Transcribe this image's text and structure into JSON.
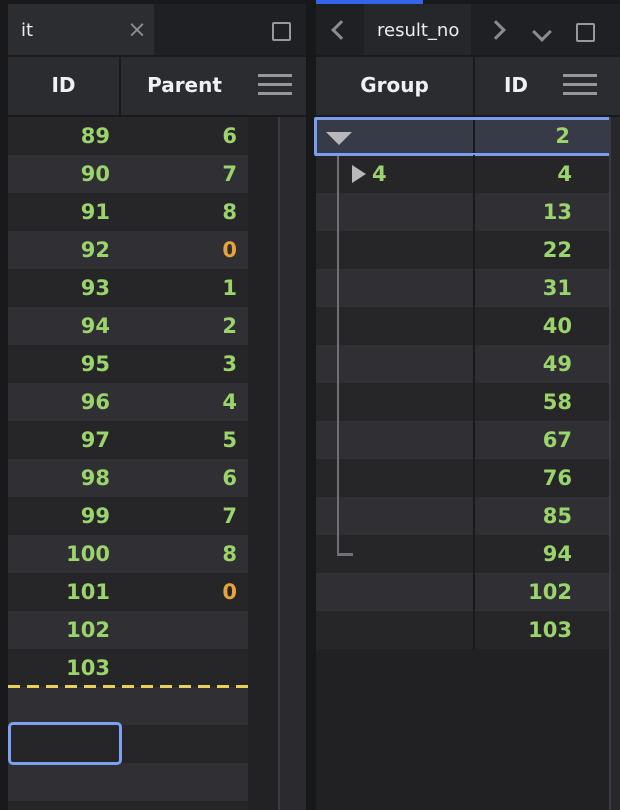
{
  "colors": {
    "value_green": "#9bd36d",
    "zero_orange": "#e7a43b",
    "selection_blue": "#7ca0f2",
    "active_tab_accent_blue": "#3465e8",
    "end_marker_yellow": "#e8d05e",
    "row_dark": "#262629",
    "row_light": "#303034",
    "selected_row_bg": "#363b47"
  },
  "left_panel": {
    "tab": {
      "label": "it",
      "close_glyph": "×",
      "close_icon": "close-x"
    },
    "window_icon": "maximize-square-outline",
    "header": {
      "columns": [
        "ID",
        "Parent"
      ],
      "menu_icon": "hamburger-menu"
    },
    "rows": [
      {
        "id": "89",
        "parent": "6"
      },
      {
        "id": "90",
        "parent": "7"
      },
      {
        "id": "91",
        "parent": "8"
      },
      {
        "id": "92",
        "parent": "0"
      },
      {
        "id": "93",
        "parent": "1"
      },
      {
        "id": "94",
        "parent": "2"
      },
      {
        "id": "95",
        "parent": "3"
      },
      {
        "id": "96",
        "parent": "4"
      },
      {
        "id": "97",
        "parent": "5"
      },
      {
        "id": "98",
        "parent": "6"
      },
      {
        "id": "99",
        "parent": "7"
      },
      {
        "id": "100",
        "parent": "8"
      },
      {
        "id": "101",
        "parent": "0"
      },
      {
        "id": "102",
        "parent": ""
      },
      {
        "id": "103",
        "parent": ""
      }
    ],
    "end_of_data_marker": "dashed-yellow-line",
    "trailing_empty_rows": 4,
    "selected_cell": {
      "location": "second-empty-row-after-marker",
      "column": "ID",
      "value": ""
    }
  },
  "right_panel": {
    "nav": {
      "back_icon": "chevron-left",
      "forward_icon": "chevron-right",
      "dropdown_icon": "chevron-down",
      "window_icon": "maximize-square-outline"
    },
    "tab": {
      "label": "result_no",
      "active": true
    },
    "header": {
      "columns": [
        "Group",
        "ID"
      ],
      "menu_icon": "hamburger-menu"
    },
    "rows": [
      {
        "group": "",
        "id": "2",
        "expander": "expanded",
        "selected": true
      },
      {
        "group": "4",
        "id": "4",
        "expander": "collapsed",
        "selected": false
      },
      {
        "group": "",
        "id": "13",
        "expander": "",
        "selected": false
      },
      {
        "group": "",
        "id": "22",
        "expander": "",
        "selected": false
      },
      {
        "group": "",
        "id": "31",
        "expander": "",
        "selected": false
      },
      {
        "group": "",
        "id": "40",
        "expander": "",
        "selected": false
      },
      {
        "group": "",
        "id": "49",
        "expander": "",
        "selected": false
      },
      {
        "group": "",
        "id": "58",
        "expander": "",
        "selected": false
      },
      {
        "group": "",
        "id": "67",
        "expander": "",
        "selected": false
      },
      {
        "group": "",
        "id": "76",
        "expander": "",
        "selected": false
      },
      {
        "group": "",
        "id": "85",
        "expander": "",
        "selected": false
      },
      {
        "group": "",
        "id": "94",
        "expander": "",
        "selected": false
      },
      {
        "group": "",
        "id": "102",
        "expander": "",
        "selected": false
      },
      {
        "group": "",
        "id": "103",
        "expander": "",
        "selected": false
      }
    ],
    "tree_guide": {
      "from_row_index": 1,
      "to_row_index": 11
    }
  }
}
